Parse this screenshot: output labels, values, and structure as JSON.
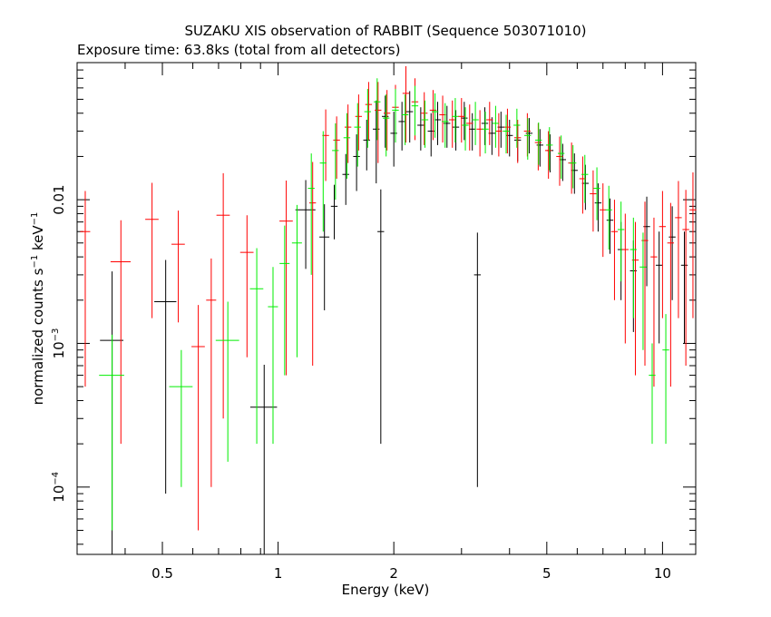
{
  "chart_data": {
    "type": "scatter",
    "title": "SUZAKU XIS observation of RABBIT (Sequence 503071010)",
    "subtitle": "Exposure time: 63.8ks (total from all detectors)",
    "xlabel": "Energy (keV)",
    "ylabel_main": "normalized counts s",
    "ylabel_mid": " keV",
    "ylabel_sup": "−1",
    "x_scale": "log",
    "y_scale": "log",
    "xlim": [
      0.3,
      12.2
    ],
    "ylim": [
      3.4e-05,
      0.09
    ],
    "x_ticks": [
      {
        "value": 0.5,
        "label": "0.5"
      },
      {
        "value": 1,
        "label": "1"
      },
      {
        "value": 2,
        "label": "2"
      },
      {
        "value": 5,
        "label": "5"
      },
      {
        "value": 10,
        "label": "10"
      }
    ],
    "y_ticks": [
      {
        "value": 0.0001,
        "base": "10",
        "exp": "−4"
      },
      {
        "value": 0.001,
        "base": "10",
        "exp": "−3"
      },
      {
        "value": 0.01,
        "base": "0.01",
        "exp": ""
      }
    ],
    "grid": false,
    "legend": "none",
    "series": [
      {
        "color": "#000000",
        "points": [
          [
            0.37,
            0.00105,
            0.07,
            0.00212
          ],
          [
            0.51,
            0.00195,
            0.066,
            0.00186
          ],
          [
            0.92,
            0.00036,
            0.08,
            0.00035
          ],
          [
            1.18,
            0.0085,
            0.06,
            0.0052
          ],
          [
            1.32,
            0.0055,
            0.03,
            0.0038
          ],
          [
            1.4,
            0.009,
            0.02,
            0.0037
          ],
          [
            1.5,
            0.015,
            0.02,
            0.0058
          ],
          [
            1.6,
            0.02,
            0.02,
            0.0085
          ],
          [
            1.7,
            0.026,
            0.02,
            0.01
          ],
          [
            1.8,
            0.031,
            0.02,
            0.018
          ],
          [
            1.85,
            0.006,
            0.02,
            0.0058
          ],
          [
            1.9,
            0.038,
            0.02,
            0.015
          ],
          [
            2,
            0.029,
            0.02,
            0.012
          ],
          [
            2.1,
            0.035,
            0.02,
            0.013
          ],
          [
            2.2,
            0.041,
            0.02,
            0.016
          ],
          [
            2.35,
            0.033,
            0.02,
            0.011
          ],
          [
            2.5,
            0.03,
            0.02,
            0.01
          ],
          [
            2.6,
            0.036,
            0.02,
            0.012
          ],
          [
            2.75,
            0.034,
            0.02,
            0.011
          ],
          [
            2.9,
            0.032,
            0.02,
            0.01
          ],
          [
            3.05,
            0.037,
            0.02,
            0.011
          ],
          [
            3.2,
            0.031,
            0.02,
            0.009
          ],
          [
            3.3,
            0.003,
            0.02,
            0.0029
          ],
          [
            3.45,
            0.034,
            0.02,
            0.01
          ],
          [
            3.6,
            0.029,
            0.02,
            0.0085
          ],
          [
            3.8,
            0.032,
            0.02,
            0.009
          ],
          [
            4,
            0.028,
            0.02,
            0.008
          ],
          [
            4.2,
            0.026,
            0.02,
            0.0075
          ],
          [
            4.5,
            0.029,
            0.02,
            0.008
          ],
          [
            4.8,
            0.024,
            0.02,
            0.007
          ],
          [
            5.1,
            0.022,
            0.02,
            0.0065
          ],
          [
            5.5,
            0.019,
            0.02,
            0.0055
          ],
          [
            5.9,
            0.016,
            0.02,
            0.005
          ],
          [
            6.3,
            0.013,
            0.02,
            0.0045
          ],
          [
            6.8,
            0.0095,
            0.02,
            0.0035
          ],
          [
            7.3,
            0.0072,
            0.02,
            0.003
          ],
          [
            7.8,
            0.0045,
            0.02,
            0.0025
          ],
          [
            8.4,
            0.0032,
            0.02,
            0.002
          ],
          [
            9.1,
            0.0065,
            0.02,
            0.004
          ],
          [
            9.8,
            0.0035,
            0.02,
            0.0025
          ],
          [
            10.6,
            0.0055,
            0.02,
            0.0035
          ],
          [
            11.4,
            0.0035,
            0.02,
            0.0025
          ]
        ]
      },
      {
        "color": "#ff0000",
        "points": [
          [
            0.315,
            0.006,
            0.03,
            0.0055
          ],
          [
            0.39,
            0.0037,
            0.06,
            0.0035
          ],
          [
            0.47,
            0.0073,
            0.04,
            0.0058
          ],
          [
            0.55,
            0.0049,
            0.04,
            0.0035
          ],
          [
            0.62,
            0.00095,
            0.04,
            0.0009
          ],
          [
            0.67,
            0.002,
            0.03,
            0.0019
          ],
          [
            0.72,
            0.0078,
            0.04,
            0.0075
          ],
          [
            0.83,
            0.0043,
            0.04,
            0.0035
          ],
          [
            1.05,
            0.0071,
            0.04,
            0.0065
          ],
          [
            1.23,
            0.0095,
            0.02,
            0.0088
          ],
          [
            1.33,
            0.028,
            0.02,
            0.0145
          ],
          [
            1.42,
            0.026,
            0.02,
            0.012
          ],
          [
            1.52,
            0.032,
            0.02,
            0.014
          ],
          [
            1.62,
            0.038,
            0.02,
            0.016
          ],
          [
            1.72,
            0.046,
            0.02,
            0.02
          ],
          [
            1.82,
            0.042,
            0.02,
            0.024
          ],
          [
            1.92,
            0.04,
            0.02,
            0.018
          ],
          [
            2.02,
            0.044,
            0.02,
            0.019
          ],
          [
            2.15,
            0.055,
            0.02,
            0.03
          ],
          [
            2.27,
            0.048,
            0.02,
            0.022
          ],
          [
            2.4,
            0.04,
            0.02,
            0.016
          ],
          [
            2.53,
            0.042,
            0.02,
            0.016
          ],
          [
            2.68,
            0.039,
            0.02,
            0.014
          ],
          [
            2.84,
            0.036,
            0.02,
            0.013
          ],
          [
            3,
            0.038,
            0.02,
            0.013
          ],
          [
            3.15,
            0.034,
            0.02,
            0.012
          ],
          [
            3.35,
            0.031,
            0.02,
            0.011
          ],
          [
            3.55,
            0.036,
            0.02,
            0.012
          ],
          [
            3.75,
            0.03,
            0.02,
            0.01
          ],
          [
            3.95,
            0.032,
            0.02,
            0.011
          ],
          [
            4.2,
            0.027,
            0.02,
            0.009
          ],
          [
            4.45,
            0.03,
            0.02,
            0.01
          ],
          [
            4.75,
            0.025,
            0.02,
            0.009
          ],
          [
            5.05,
            0.022,
            0.02,
            0.008
          ],
          [
            5.4,
            0.02,
            0.02,
            0.0075
          ],
          [
            5.8,
            0.018,
            0.02,
            0.007
          ],
          [
            6.2,
            0.014,
            0.02,
            0.006
          ],
          [
            6.6,
            0.011,
            0.02,
            0.005
          ],
          [
            7,
            0.0085,
            0.02,
            0.0045
          ],
          [
            7.5,
            0.006,
            0.02,
            0.004
          ],
          [
            8,
            0.0045,
            0.02,
            0.0035
          ],
          [
            8.5,
            0.0038,
            0.02,
            0.0032
          ],
          [
            9,
            0.0052,
            0.02,
            0.0045
          ],
          [
            9.5,
            0.004,
            0.02,
            0.0035
          ],
          [
            10,
            0.0065,
            0.02,
            0.005
          ],
          [
            10.5,
            0.005,
            0.02,
            0.0045
          ],
          [
            11,
            0.0075,
            0.02,
            0.006
          ],
          [
            11.5,
            0.0062,
            0.02,
            0.0055
          ],
          [
            12,
            0.0085,
            0.02,
            0.007
          ]
        ]
      },
      {
        "color": "#00ee00",
        "points": [
          [
            0.37,
            0.0006,
            0.075,
            0.00055
          ],
          [
            0.56,
            0.0005,
            0.07,
            0.0004
          ],
          [
            0.74,
            0.00105,
            0.07,
            0.0009
          ],
          [
            0.88,
            0.0024,
            0.04,
            0.0022
          ],
          [
            0.97,
            0.0018,
            0.03,
            0.0016
          ],
          [
            1.04,
            0.0036,
            0.03,
            0.003
          ],
          [
            1.12,
            0.005,
            0.03,
            0.0042
          ],
          [
            1.22,
            0.012,
            0.02,
            0.009
          ],
          [
            1.31,
            0.018,
            0.02,
            0.012
          ],
          [
            1.41,
            0.022,
            0.02,
            0.012
          ],
          [
            1.51,
            0.027,
            0.02,
            0.013
          ],
          [
            1.61,
            0.032,
            0.02,
            0.015
          ],
          [
            1.71,
            0.041,
            0.02,
            0.018
          ],
          [
            1.81,
            0.048,
            0.02,
            0.022
          ],
          [
            1.91,
            0.037,
            0.02,
            0.017
          ],
          [
            2.02,
            0.042,
            0.02,
            0.017
          ],
          [
            2.14,
            0.039,
            0.02,
            0.015
          ],
          [
            2.27,
            0.045,
            0.02,
            0.017
          ],
          [
            2.41,
            0.036,
            0.02,
            0.013
          ],
          [
            2.56,
            0.041,
            0.02,
            0.014
          ],
          [
            2.72,
            0.035,
            0.02,
            0.012
          ],
          [
            2.89,
            0.038,
            0.02,
            0.013
          ],
          [
            3.07,
            0.033,
            0.02,
            0.011
          ],
          [
            3.26,
            0.036,
            0.02,
            0.012
          ],
          [
            3.46,
            0.031,
            0.02,
            0.01
          ],
          [
            3.68,
            0.034,
            0.02,
            0.011
          ],
          [
            3.92,
            0.03,
            0.02,
            0.009
          ],
          [
            4.18,
            0.033,
            0.02,
            0.01
          ],
          [
            4.46,
            0.028,
            0.02,
            0.009
          ],
          [
            4.76,
            0.026,
            0.02,
            0.0085
          ],
          [
            5.08,
            0.024,
            0.02,
            0.008
          ],
          [
            5.45,
            0.021,
            0.02,
            0.007
          ],
          [
            5.85,
            0.018,
            0.02,
            0.006
          ],
          [
            6.28,
            0.015,
            0.02,
            0.0055
          ],
          [
            6.75,
            0.012,
            0.02,
            0.0048
          ],
          [
            7.25,
            0.0085,
            0.02,
            0.004
          ],
          [
            7.8,
            0.0062,
            0.02,
            0.0035
          ],
          [
            8.4,
            0.0045,
            0.02,
            0.003
          ],
          [
            8.9,
            0.0034,
            0.02,
            0.0025
          ],
          [
            9.4,
            0.0006,
            0.02,
            0.0004
          ],
          [
            10.2,
            0.0009,
            0.02,
            0.0007
          ]
        ]
      }
    ]
  }
}
